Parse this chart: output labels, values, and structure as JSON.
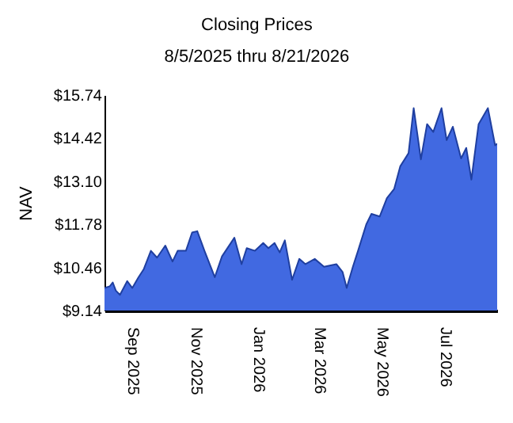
{
  "chart_data": {
    "type": "area",
    "title": "Closing Prices",
    "subtitle": "8/5/2025 thru 8/21/2026",
    "ylabel": "NAV",
    "x": [
      "2025-08-05",
      "2025-08-10",
      "2025-08-13",
      "2025-08-16",
      "2025-08-20",
      "2025-08-27",
      "2025-09-01",
      "2025-09-07",
      "2025-09-12",
      "2025-09-19",
      "2025-09-25",
      "2025-10-03",
      "2025-10-10",
      "2025-10-15",
      "2025-10-23",
      "2025-10-29",
      "2025-11-03",
      "2025-11-10",
      "2025-11-20",
      "2025-11-27",
      "2025-12-09",
      "2025-12-16",
      "2025-12-21",
      "2025-12-29",
      "2026-01-06",
      "2026-01-11",
      "2026-01-17",
      "2026-01-22",
      "2026-01-27",
      "2026-02-03",
      "2026-02-10",
      "2026-02-16",
      "2026-02-25",
      "2026-03-06",
      "2026-03-18",
      "2026-03-24",
      "2026-03-28",
      "2026-04-03",
      "2026-04-08",
      "2026-04-16",
      "2026-04-21",
      "2026-04-29",
      "2026-05-06",
      "2026-05-13",
      "2026-05-19",
      "2026-05-27",
      "2026-06-01",
      "2026-06-08",
      "2026-06-14",
      "2026-06-20",
      "2026-06-28",
      "2026-07-03",
      "2026-07-09",
      "2026-07-17",
      "2026-07-22",
      "2026-07-27",
      "2026-08-03",
      "2026-08-12",
      "2026-08-19",
      "2026-08-21"
    ],
    "series": [
      {
        "color": "#4169e1",
        "values": [
          9.83,
          9.88,
          10.0,
          9.75,
          9.62,
          10.04,
          9.83,
          10.16,
          10.4,
          10.97,
          10.76,
          11.13,
          10.64,
          10.97,
          10.97,
          11.53,
          11.57,
          10.97,
          10.16,
          10.8,
          11.37,
          10.56,
          11.05,
          10.97,
          11.21,
          11.05,
          11.21,
          10.92,
          11.29,
          10.08,
          10.72,
          10.56,
          10.72,
          10.48,
          10.56,
          10.32,
          9.83,
          10.48,
          10.97,
          11.78,
          12.1,
          12.02,
          12.58,
          12.86,
          13.56,
          13.96,
          15.34,
          13.77,
          14.85,
          14.61,
          15.34,
          14.36,
          14.77,
          13.8,
          14.12,
          13.15,
          14.85,
          15.34,
          14.2,
          14.25
        ]
      }
    ],
    "xlim": [
      "2025-08-05",
      "2026-08-21"
    ],
    "xticks": [
      {
        "value": "2025-09-01",
        "label": "Sep  2025"
      },
      {
        "value": "2025-11-01",
        "label": "Nov  2025"
      },
      {
        "value": "2026-01-01",
        "label": "Jan  2026"
      },
      {
        "value": "2026-03-01",
        "label": "Mar  2026"
      },
      {
        "value": "2026-05-01",
        "label": "May  2026"
      },
      {
        "value": "2026-07-01",
        "label": "Jul  2026"
      }
    ],
    "ylim": [
      9.14,
      15.74
    ],
    "yticks": [
      {
        "value": 9.14,
        "label": "$9.14"
      },
      {
        "value": 10.46,
        "label": "$10.46"
      },
      {
        "value": 11.78,
        "label": "$11.78"
      },
      {
        "value": 13.1,
        "label": "$13.10"
      },
      {
        "value": 14.42,
        "label": "$14.42"
      },
      {
        "value": 15.74,
        "label": "$15.74"
      }
    ],
    "grid": false
  }
}
